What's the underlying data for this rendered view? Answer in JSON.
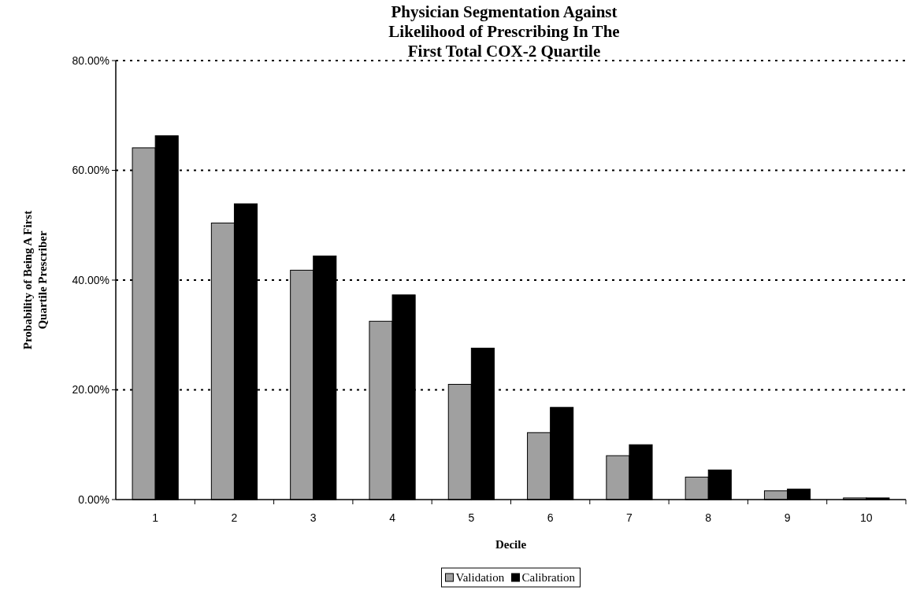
{
  "chart_data": {
    "type": "bar",
    "title": "Physician Segmentation Against Likelihood of Prescribing In The First Total COX-2 Quartile",
    "xlabel": "Decile",
    "ylabel": "Probability of Being A First Quartile Prescriber",
    "categories": [
      "1",
      "2",
      "3",
      "4",
      "5",
      "6",
      "7",
      "8",
      "9",
      "10"
    ],
    "series": [
      {
        "name": "Validation",
        "color": "#a0a0a0",
        "values": [
          64.1,
          50.4,
          41.8,
          32.5,
          21.0,
          12.2,
          8.0,
          4.1,
          1.6,
          0.3
        ]
      },
      {
        "name": "Calibration",
        "color": "#000000",
        "values": [
          66.3,
          53.9,
          44.4,
          37.3,
          27.6,
          16.8,
          10.0,
          5.4,
          1.9,
          0.3
        ]
      }
    ],
    "ylim": [
      0,
      80
    ],
    "yticks": [
      {
        "value": 0,
        "label": "0.00%"
      },
      {
        "value": 20,
        "label": "20.00%"
      },
      {
        "value": 40,
        "label": "40.00%"
      },
      {
        "value": 60,
        "label": "60.00%"
      },
      {
        "value": 80,
        "label": "80.00%"
      }
    ],
    "grid": "y",
    "line_style": "dotted",
    "legend": "bottom"
  }
}
